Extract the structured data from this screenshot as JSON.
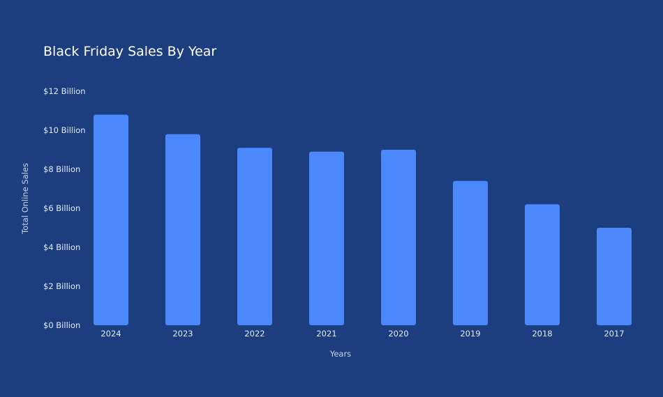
{
  "chart_data": {
    "type": "bar",
    "title": "Black Friday Sales By Year",
    "xlabel": "Years",
    "ylabel": "Total Online Sales",
    "categories": [
      "2024",
      "2023",
      "2022",
      "2021",
      "2020",
      "2019",
      "2018",
      "2017"
    ],
    "values": [
      10.8,
      9.8,
      9.1,
      8.9,
      9.0,
      7.4,
      6.2,
      5.0
    ],
    "value_unit": "Billion USD",
    "ylim": [
      0,
      12
    ],
    "yticks": [
      0,
      2,
      4,
      6,
      8,
      10,
      12
    ],
    "ytick_labels": [
      "$0 Billion",
      "$2 Billion",
      "$4 Billion",
      "$6 Billion",
      "$8 Billion",
      "$10 Billion",
      "$12 Billion"
    ],
    "grid": false,
    "legend": "none",
    "colors": {
      "background": "#1c3d7e",
      "bar": "#4a88fb",
      "text": "#ffffff"
    }
  }
}
